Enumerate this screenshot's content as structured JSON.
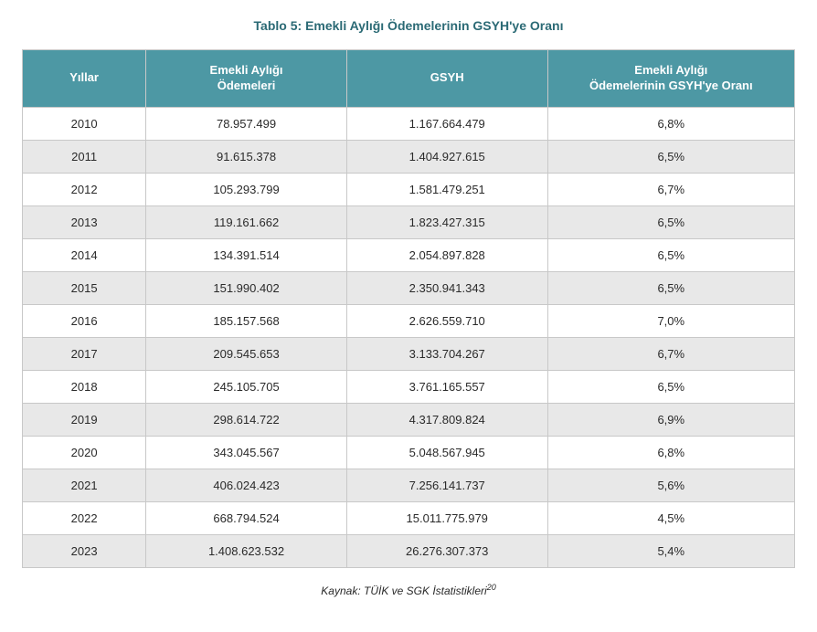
{
  "title": "Tablo 5: Emekli Aylığı Ödemelerinin GSYH'ye Oranı",
  "columns": {
    "year": "Yıllar",
    "payments": "Emekli Aylığı\nÖdemeleri",
    "gsyh": "GSYH",
    "ratio": "Emekli Aylığı\nÖdemelerinin GSYH'ye Oranı"
  },
  "rows": [
    {
      "year": "2010",
      "payments": "78.957.499",
      "gsyh": "1.167.664.479",
      "ratio": "6,8%"
    },
    {
      "year": "2011",
      "payments": "91.615.378",
      "gsyh": "1.404.927.615",
      "ratio": "6,5%"
    },
    {
      "year": "2012",
      "payments": "105.293.799",
      "gsyh": "1.581.479.251",
      "ratio": "6,7%"
    },
    {
      "year": "2013",
      "payments": "119.161.662",
      "gsyh": "1.823.427.315",
      "ratio": "6,5%"
    },
    {
      "year": "2014",
      "payments": "134.391.514",
      "gsyh": "2.054.897.828",
      "ratio": "6,5%"
    },
    {
      "year": "2015",
      "payments": "151.990.402",
      "gsyh": "2.350.941.343",
      "ratio": "6,5%"
    },
    {
      "year": "2016",
      "payments": "185.157.568",
      "gsyh": "2.626.559.710",
      "ratio": "7,0%"
    },
    {
      "year": "2017",
      "payments": "209.545.653",
      "gsyh": "3.133.704.267",
      "ratio": "6,7%"
    },
    {
      "year": "2018",
      "payments": "245.105.705",
      "gsyh": "3.761.165.557",
      "ratio": "6,5%"
    },
    {
      "year": "2019",
      "payments": "298.614.722",
      "gsyh": "4.317.809.824",
      "ratio": "6,9%"
    },
    {
      "year": "2020",
      "payments": "343.045.567",
      "gsyh": "5.048.567.945",
      "ratio": "6,8%"
    },
    {
      "year": "2021",
      "payments": "406.024.423",
      "gsyh": "7.256.141.737",
      "ratio": "5,6%"
    },
    {
      "year": "2022",
      "payments": "668.794.524",
      "gsyh": "15.011.775.979",
      "ratio": "4,5%"
    },
    {
      "year": "2023",
      "payments": "1.408.623.532",
      "gsyh": "26.276.307.373",
      "ratio": "5,4%"
    }
  ],
  "source_text": "Kaynak: TÜİK ve SGK İstatistikleri",
  "source_sup": "20",
  "style": {
    "type": "table",
    "header_bg_color": "#4d98a4",
    "header_text_color": "#ffffff",
    "border_color": "#c8c8c8",
    "row_odd_bg": "#ffffff",
    "row_even_bg": "#e8e8e8",
    "title_color": "#2b6a75",
    "body_text_color": "#2a2a2a",
    "title_fontsize": 14,
    "header_fontsize": 13,
    "cell_fontsize": 13,
    "source_fontsize": 12,
    "col_widths_pct": [
      16,
      26,
      26,
      32
    ],
    "background_color": "#ffffff"
  }
}
